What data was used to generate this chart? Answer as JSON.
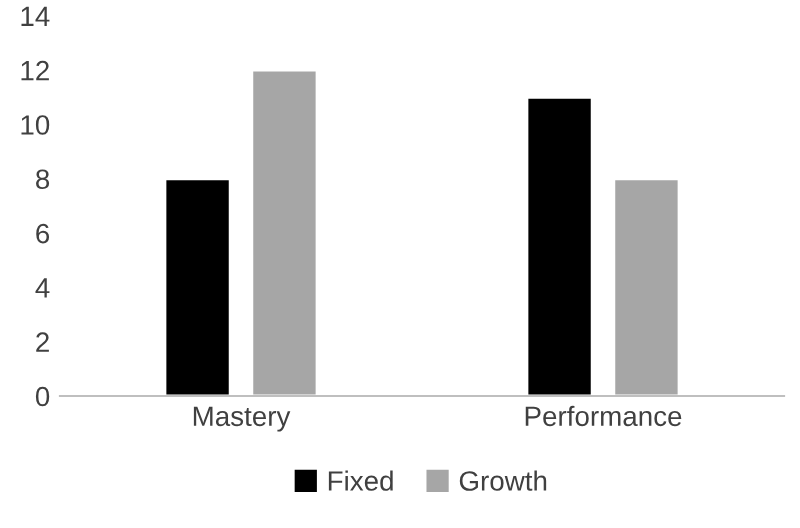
{
  "chart_data": {
    "type": "bar",
    "categories": [
      "Mastery",
      "Performance"
    ],
    "series": [
      {
        "name": "Fixed",
        "color": "#000000",
        "values": [
          8,
          11
        ]
      },
      {
        "name": "Growth",
        "color": "#a6a6a6",
        "values": [
          12,
          8
        ]
      }
    ],
    "ylim": [
      0,
      14
    ],
    "yticks": [
      0,
      2,
      4,
      6,
      8,
      10,
      12,
      14
    ],
    "grid": false,
    "legend": "bottom"
  }
}
